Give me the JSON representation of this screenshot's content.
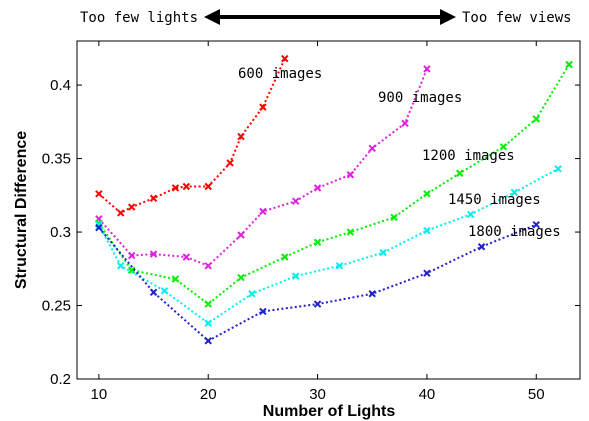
{
  "chart_data": {
    "type": "line",
    "title": "",
    "xlabel": "Number of Lights",
    "ylabel": "Structural Difference",
    "xlim": [
      8,
      54
    ],
    "ylim": [
      0.2,
      0.43
    ],
    "xticks": [
      10,
      20,
      30,
      40,
      50
    ],
    "yticks": [
      0.2,
      0.25,
      0.3,
      0.35,
      0.4
    ],
    "xtick_labels": [
      "10",
      "20",
      "30",
      "40",
      "50"
    ],
    "ytick_labels": [
      "0.2",
      "0.25",
      "0.3",
      "0.35",
      "0.4"
    ],
    "grid": false,
    "top_annotations": {
      "left": "Too few lights",
      "right": "Too few views"
    },
    "series": [
      {
        "name": "600 images",
        "color": "#ff0000",
        "x": [
          10,
          12,
          13,
          15,
          17,
          18,
          20,
          22,
          23,
          25,
          27
        ],
        "y": [
          0.326,
          0.313,
          0.317,
          0.323,
          0.33,
          0.331,
          0.331,
          0.347,
          0.365,
          0.385,
          0.418
        ]
      },
      {
        "name": "900 images",
        "color": "#e020e0",
        "x": [
          10,
          13,
          15,
          18,
          20,
          23,
          25,
          28,
          30,
          33,
          35,
          38,
          40
        ],
        "y": [
          0.309,
          0.284,
          0.285,
          0.283,
          0.277,
          0.298,
          0.314,
          0.321,
          0.33,
          0.339,
          0.357,
          0.374,
          0.411
        ]
      },
      {
        "name": "1200 images",
        "color": "#00ee00",
        "x": [
          10,
          13,
          17,
          20,
          23,
          27,
          30,
          33,
          37,
          40,
          43,
          47,
          50,
          53
        ],
        "y": [
          0.306,
          0.274,
          0.268,
          0.251,
          0.269,
          0.283,
          0.293,
          0.3,
          0.31,
          0.326,
          0.34,
          0.358,
          0.377,
          0.414
        ]
      },
      {
        "name": "1450 images",
        "color": "#00eeee",
        "x": [
          10,
          12,
          16,
          20,
          24,
          28,
          32,
          36,
          40,
          44,
          48,
          52
        ],
        "y": [
          0.305,
          0.277,
          0.26,
          0.238,
          0.258,
          0.27,
          0.277,
          0.286,
          0.301,
          0.312,
          0.327,
          0.343
        ]
      },
      {
        "name": "1800 images",
        "color": "#2020cc",
        "x": [
          10,
          15,
          20,
          25,
          30,
          35,
          40,
          45,
          50
        ],
        "y": [
          0.303,
          0.259,
          0.226,
          0.246,
          0.251,
          0.258,
          0.272,
          0.29,
          0.305
        ]
      }
    ]
  }
}
